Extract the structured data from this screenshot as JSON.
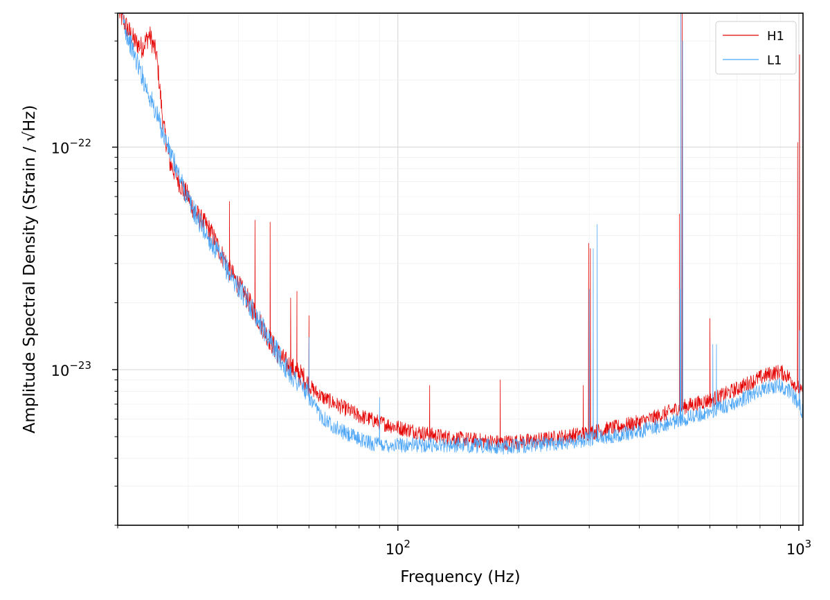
{
  "chart_data": {
    "type": "line",
    "title": "",
    "xlabel": "Frequency (Hz)",
    "ylabel": "Amplitude Spectral Density (Strain / √Hz)",
    "x_scale": "log",
    "y_scale": "log",
    "xlim": [
      20,
      1024
    ],
    "ylim": [
      2e-24,
      4e-22
    ],
    "grid": true,
    "legend_position": "top-right",
    "x_ticks": [
      {
        "value": 100,
        "base": "10",
        "exp": "2"
      },
      {
        "value": 1000,
        "base": "10",
        "exp": "3"
      }
    ],
    "y_ticks": [
      {
        "value": 1e-23,
        "base": "10",
        "exp": "−23"
      },
      {
        "value": 1e-22,
        "base": "10",
        "exp": "−22"
      }
    ],
    "series": [
      {
        "name": "H1",
        "color": "#e50000",
        "x": [
          20.2,
          21,
          22,
          23,
          24,
          25,
          26,
          27,
          28,
          29,
          30,
          31,
          32,
          33,
          34,
          35,
          36,
          37,
          38,
          39,
          40,
          42,
          44,
          46,
          48,
          50,
          52,
          55,
          58,
          60,
          62,
          65,
          70,
          75,
          80,
          85,
          90,
          100,
          110,
          120,
          140,
          160,
          180,
          200,
          220,
          250,
          280,
          300,
          350,
          400,
          450,
          500,
          550,
          600,
          650,
          700,
          750,
          800,
          850,
          900,
          950,
          1000,
          1020
        ],
        "y": [
          4e-22,
          3.5e-22,
          3e-22,
          2.8e-22,
          3.2e-22,
          2.6e-22,
          1.25e-22,
          8.5e-23,
          7.5e-23,
          6.5e-23,
          6e-23,
          5.2e-23,
          4.8e-23,
          4.5e-23,
          4.2e-23,
          3.8e-23,
          3.4e-23,
          3.1e-23,
          2.8e-23,
          2.6e-23,
          2.4e-23,
          2.1e-23,
          1.8e-23,
          1.55e-23,
          1.35e-23,
          1.2e-23,
          1.1e-23,
          1e-23,
          9.3e-24,
          8.5e-24,
          8e-24,
          7.5e-24,
          7e-24,
          6.6e-24,
          6.2e-24,
          6e-24,
          5.8e-24,
          5.5e-24,
          5.3e-24,
          5.1e-24,
          4.9e-24,
          4.8e-24,
          4.7e-24,
          4.75e-24,
          4.8e-24,
          4.95e-24,
          5.1e-24,
          5.2e-24,
          5.5e-24,
          5.8e-24,
          6.2e-24,
          6.7e-24,
          7e-24,
          7.3e-24,
          7.7e-24,
          8.2e-24,
          8.7e-24,
          9.2e-24,
          9.6e-24,
          9.8e-24,
          9.2e-24,
          8.2e-24,
          7.8e-24
        ],
        "peaks": [
          {
            "x": 38,
            "y": 5.7e-23
          },
          {
            "x": 44,
            "y": 4.7e-23
          },
          {
            "x": 48,
            "y": 4.6e-23
          },
          {
            "x": 54,
            "y": 2.1e-23
          },
          {
            "x": 56,
            "y": 2.25e-23
          },
          {
            "x": 60,
            "y": 1.75e-23
          },
          {
            "x": 120,
            "y": 8.5e-24
          },
          {
            "x": 180,
            "y": 9e-24
          },
          {
            "x": 290,
            "y": 8.5e-24
          },
          {
            "x": 299,
            "y": 3.7e-23
          },
          {
            "x": 302,
            "y": 3.5e-23
          },
          {
            "x": 504,
            "y": 5e-23
          },
          {
            "x": 508,
            "y": 4e-22
          },
          {
            "x": 512,
            "y": 4e-22
          },
          {
            "x": 600,
            "y": 1.7e-23
          },
          {
            "x": 993,
            "y": 1.05e-22
          },
          {
            "x": 1004,
            "y": 2.6e-22
          }
        ]
      },
      {
        "name": "L1",
        "color": "#4da6f5",
        "x": [
          20.5,
          21,
          22,
          23,
          24,
          25,
          26,
          27,
          28,
          29,
          30,
          32,
          34,
          36,
          38,
          40,
          42,
          44,
          46,
          48,
          50,
          52,
          55,
          58,
          60,
          62,
          65,
          70,
          75,
          80,
          85,
          90,
          100,
          110,
          120,
          140,
          160,
          180,
          200,
          220,
          250,
          280,
          300,
          350,
          400,
          450,
          500,
          550,
          600,
          650,
          700,
          750,
          800,
          850,
          900,
          950,
          1000,
          1020
        ],
        "y": [
          4e-22,
          3.3e-22,
          2.6e-22,
          2.1e-22,
          1.7e-22,
          1.4e-22,
          1.15e-22,
          9.5e-23,
          8e-23,
          6.8e-23,
          5.8e-23,
          4.6e-23,
          3.8e-23,
          3.2e-23,
          2.7e-23,
          2.35e-23,
          2.05e-23,
          1.8e-23,
          1.55e-23,
          1.35e-23,
          1.2e-23,
          1.05e-23,
          9.2e-24,
          8.3e-24,
          7.5e-24,
          6.8e-24,
          6.1e-24,
          5.5e-24,
          5.1e-24,
          4.9e-24,
          4.7e-24,
          4.6e-24,
          4.6e-24,
          4.6e-24,
          4.6e-24,
          4.6e-24,
          4.55e-24,
          4.5e-24,
          4.55e-24,
          4.6e-24,
          4.7e-24,
          4.8e-24,
          4.9e-24,
          5.1e-24,
          5.3e-24,
          5.6e-24,
          5.9e-24,
          6.2e-24,
          6.5e-24,
          6.8e-24,
          7.2e-24,
          7.6e-24,
          8e-24,
          8.4e-24,
          8.5e-24,
          8e-24,
          7e-24,
          6.5e-24
        ],
        "peaks": [
          {
            "x": 60,
            "y": 1.4e-23
          },
          {
            "x": 90,
            "y": 7.5e-24
          },
          {
            "x": 300,
            "y": 2.3e-23
          },
          {
            "x": 307,
            "y": 3.5e-23
          },
          {
            "x": 314,
            "y": 4.5e-23
          },
          {
            "x": 505,
            "y": 2.3e-23
          },
          {
            "x": 508,
            "y": 4e-22
          },
          {
            "x": 513,
            "y": 3e-22
          },
          {
            "x": 610,
            "y": 1.3e-23
          },
          {
            "x": 623,
            "y": 1.3e-23
          },
          {
            "x": 1004,
            "y": 1.5e-23
          }
        ]
      }
    ]
  }
}
